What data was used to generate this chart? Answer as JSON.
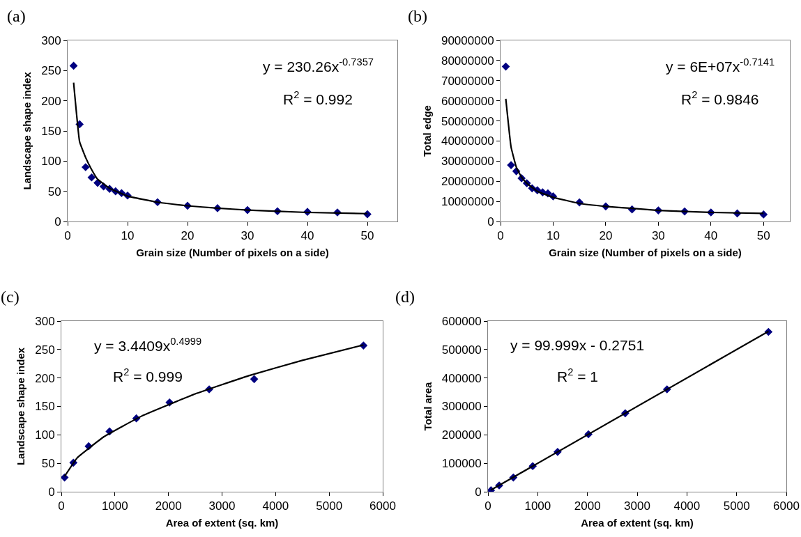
{
  "chart_data": [
    {
      "type": "scatter",
      "title": "(a)",
      "xlabel": "Grain size (Number of pixels on a side)",
      "ylabel": "Landscape shape index",
      "x": [
        1,
        2,
        3,
        4,
        5,
        6,
        7,
        8,
        9,
        10,
        15,
        20,
        25,
        30,
        35,
        40,
        45,
        50
      ],
      "marker": "diamond",
      "grid": false,
      "series": [
        {
          "color": "#000080",
          "values": [
            258,
            161,
            90,
            73,
            64,
            58,
            54,
            50,
            47,
            43,
            32,
            26,
            22,
            19,
            17,
            16,
            15,
            12
          ]
        },
        {
          "type": "line",
          "color": "#000000",
          "marker": "none",
          "x": [
            1,
            2,
            3,
            4,
            5,
            7,
            10,
            15,
            20,
            25,
            30,
            40,
            50
          ],
          "values": [
            230,
            132,
            106,
            86,
            70,
            55,
            42,
            32,
            26,
            22,
            19,
            15,
            13
          ]
        }
      ],
      "xlim": [
        0,
        55
      ],
      "xticks": [
        0,
        10,
        20,
        30,
        40,
        50
      ],
      "ylim": [
        0,
        300
      ],
      "yticks": [
        0,
        50,
        100,
        150,
        200,
        250,
        300
      ],
      "annotations": [
        "y = 230.26x$^{-0.7357}$",
        "R$^{2}$ = 0.992"
      ]
    },
    {
      "type": "scatter",
      "title": "(b)",
      "xlabel": "Grain size (Number of pixels on a side)",
      "ylabel": "Total edge",
      "x": [
        1,
        2,
        3,
        4,
        5,
        6,
        7,
        8,
        9,
        10,
        15,
        20,
        25,
        30,
        35,
        40,
        45,
        50
      ],
      "marker": "diamond",
      "grid": false,
      "series": [
        {
          "color": "#000080",
          "values": [
            77000000,
            28000000,
            25000000,
            21500000,
            19000000,
            16500000,
            15500000,
            14500000,
            14000000,
            12500000,
            9500000,
            7500000,
            6000000,
            5500000,
            5000000,
            4500000,
            4000000,
            3500000
          ]
        },
        {
          "type": "line",
          "color": "#000000",
          "marker": "none",
          "x": [
            1,
            2,
            3,
            4,
            5,
            7,
            10,
            15,
            20,
            25,
            30,
            40,
            50
          ],
          "values": [
            61000000,
            37000000,
            27000000,
            22000000,
            19000000,
            15000000,
            12000000,
            9000000,
            7500000,
            6500000,
            5500000,
            4500000,
            4000000
          ]
        }
      ],
      "xlim": [
        0,
        55
      ],
      "xticks": [
        0,
        10,
        20,
        30,
        40,
        50
      ],
      "ylim": [
        0,
        90000000
      ],
      "yticks": [
        0,
        10000000,
        20000000,
        30000000,
        40000000,
        50000000,
        60000000,
        70000000,
        80000000,
        90000000
      ],
      "annotations": [
        "y = 6E+07x$^{-0.7141}$",
        "R$^{2}$ = 0.9846"
      ]
    },
    {
      "type": "scatter",
      "title": "(c)",
      "xlabel": "Area of extent (sq. km)",
      "ylabel": "Landscape shape index",
      "x": [
        60,
        225,
        510,
        900,
        1400,
        2020,
        2760,
        3600,
        5640
      ],
      "marker": "diamond",
      "grid": false,
      "series": [
        {
          "color": "#000080",
          "values": [
            25,
            51,
            80,
            106,
            129,
            157,
            180,
            198,
            257
          ]
        },
        {
          "type": "line",
          "color": "#000000",
          "marker": "none",
          "x": [
            60,
            300,
            800,
            1500,
            2500,
            3500,
            4500,
            5640
          ],
          "values": [
            27,
            60,
            97,
            133,
            172,
            204,
            231,
            258
          ]
        }
      ],
      "xlim": [
        0,
        6000
      ],
      "xticks": [
        0,
        1000,
        2000,
        3000,
        4000,
        5000,
        6000
      ],
      "ylim": [
        0,
        300
      ],
      "yticks": [
        0,
        50,
        100,
        150,
        200,
        250,
        300
      ],
      "annotations": [
        "y = 3.4409x$^{0.4999}$",
        "R$^{2}$ = 0.999"
      ]
    },
    {
      "type": "scatter",
      "title": "(d)",
      "xlabel": "Area of extent (sq. km)",
      "ylabel": "Total area",
      "x": [
        60,
        225,
        510,
        900,
        1400,
        2020,
        2760,
        3600,
        5640
      ],
      "marker": "diamond",
      "grid": false,
      "series": [
        {
          "color": "#000080",
          "values": [
            5000,
            22000,
            50000,
            90000,
            140000,
            202000,
            276000,
            360000,
            562000
          ]
        },
        {
          "type": "line",
          "color": "#000000",
          "marker": "none",
          "x": [
            60,
            5640
          ],
          "values": [
            6000,
            564000
          ]
        }
      ],
      "xlim": [
        0,
        6000
      ],
      "xticks": [
        0,
        1000,
        2000,
        3000,
        4000,
        5000,
        6000
      ],
      "ylim": [
        0,
        600000
      ],
      "yticks": [
        0,
        100000,
        200000,
        300000,
        400000,
        500000,
        600000
      ],
      "annotations": [
        "y = 99.999x - 0.2751",
        "R$^{2}$ = 1"
      ]
    }
  ]
}
